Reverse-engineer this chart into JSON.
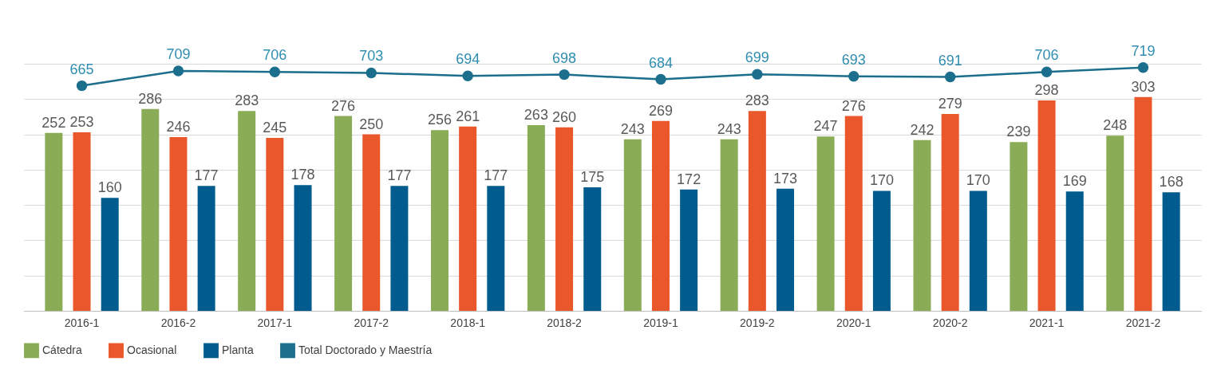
{
  "chart_data": {
    "type": "bar",
    "categories": [
      "2016-1",
      "2016-2",
      "2017-1",
      "2017-2",
      "2018-1",
      "2018-2",
      "2019-1",
      "2019-2",
      "2020-1",
      "2020-2",
      "2021-1",
      "2021-2"
    ],
    "series": [
      {
        "name": "Cátedra",
        "color": "#8aac57",
        "values": [
          252,
          286,
          283,
          276,
          256,
          263,
          243,
          243,
          247,
          242,
          239,
          248
        ]
      },
      {
        "name": "Ocasional",
        "color": "#e9572b",
        "values": [
          253,
          246,
          245,
          250,
          261,
          260,
          269,
          283,
          276,
          279,
          298,
          303
        ]
      },
      {
        "name": "Planta",
        "color": "#005b8e",
        "values": [
          160,
          177,
          178,
          177,
          177,
          175,
          172,
          173,
          170,
          170,
          169,
          168
        ]
      },
      {
        "name": "Total Doctorado y Maestría",
        "type": "line",
        "axis": "y2",
        "color": "#1b6f8c",
        "marker": "circle",
        "values": [
          665,
          709,
          706,
          703,
          694,
          698,
          684,
          699,
          693,
          691,
          706,
          719
        ]
      }
    ],
    "ylim": [
      0,
      350
    ],
    "yticks": [
      {
        "value": 0,
        "label": null
      },
      {
        "value": 50,
        "label": null
      },
      {
        "value": 100,
        "label": null
      },
      {
        "value": 150,
        "label": null
      },
      {
        "value": 200,
        "label": null
      },
      {
        "value": 250,
        "label": null
      },
      {
        "value": 300,
        "label": null
      },
      {
        "value": 350,
        "label": null
      }
    ],
    "y2lim": [
      0,
      730
    ],
    "grid": "y",
    "tick_labels": "x",
    "data_labels": true,
    "legend": "bottom"
  }
}
